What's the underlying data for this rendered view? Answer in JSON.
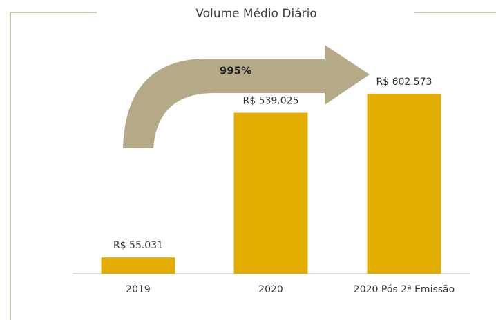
{
  "chart_data": {
    "type": "bar",
    "title": "Volume Médio Diário",
    "categories": [
      "2019",
      "2020",
      "2020 Pós 2ª Emissão"
    ],
    "values": [
      55031,
      539025,
      602573
    ],
    "value_labels": [
      "R$ 55.031",
      "R$ 539.025",
      "R$ 602.573"
    ],
    "color": "#e2ac00",
    "annotation": "995%",
    "annotation_color": "#b5aa88"
  }
}
